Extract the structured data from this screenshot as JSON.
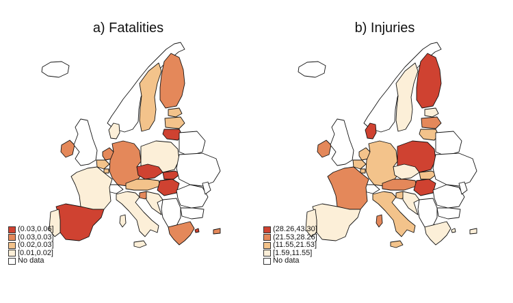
{
  "colors": {
    "c1": "#cf4231",
    "c2": "#e4885a",
    "c3": "#f3c38b",
    "c4": "#fcefd8",
    "nodata": "#ffffff",
    "border": "#111111"
  },
  "panels": [
    {
      "title": "a) Fatalities",
      "legend": [
        {
          "label": "(0.03,0.06]",
          "color_key": "c1"
        },
        {
          "label": "(0.03,0.03]",
          "color_key": "c2"
        },
        {
          "label": "(0.02,0.03]",
          "color_key": "c3"
        },
        {
          "label": "[0.01,0.02]",
          "color_key": "c4"
        },
        {
          "label": "No data",
          "color_key": "nodata"
        }
      ],
      "regions": {
        "iceland": "nodata",
        "ireland": "c2",
        "uk": "nodata",
        "norway": "nodata",
        "sweden": "c3",
        "finland": "c2",
        "estonia": "c3",
        "latvia": "c3",
        "lithuania": "c1",
        "denmark": "c4",
        "netherlands": "c2",
        "belgium": "c3",
        "luxembourg": "c3",
        "germany": "c2",
        "poland": "c4",
        "czechia": "c1",
        "slovakia": "c1",
        "austria": "c3",
        "hungary": "c1",
        "switzerland": "nodata",
        "france": "c4",
        "spain": "c1",
        "portugal": "c4",
        "italy": "c4",
        "sicily": "c4",
        "sardinia": "c4",
        "slovenia": "c2",
        "croatia": "c4",
        "romania": "nodata",
        "bulgaria": "nodata",
        "balkans": "nodata",
        "greece": "c2",
        "cyprus": "c2",
        "belarus": "nodata",
        "ukraine": "nodata",
        "moldova": "nodata",
        "islands": "c1"
      }
    },
    {
      "title": "b) Injuries",
      "legend": [
        {
          "label": "(28.26,43.30]",
          "color_key": "c1"
        },
        {
          "label": "(21.53,28.26]",
          "color_key": "c2"
        },
        {
          "label": "(11.55,21.53]",
          "color_key": "c3"
        },
        {
          "label": "[1.59,11.55]",
          "color_key": "c4"
        },
        {
          "label": "No data",
          "color_key": "nodata"
        }
      ],
      "regions": {
        "iceland": "nodata",
        "ireland": "c2",
        "uk": "nodata",
        "norway": "nodata",
        "sweden": "c4",
        "finland": "c1",
        "estonia": "c4",
        "latvia": "c2",
        "lithuania": "c3",
        "denmark": "c1",
        "netherlands": "c3",
        "belgium": "c3",
        "luxembourg": "c3",
        "germany": "c3",
        "poland": "c1",
        "czechia": "c4",
        "slovakia": "c3",
        "austria": "c2",
        "hungary": "c1",
        "switzerland": "nodata",
        "france": "c2",
        "spain": "c4",
        "portugal": "c4",
        "italy": "c3",
        "sicily": "c3",
        "sardinia": "c2",
        "slovenia": "c3",
        "croatia": "c4",
        "romania": "nodata",
        "bulgaria": "nodata",
        "balkans": "nodata",
        "greece": "c4",
        "cyprus": "c4",
        "belarus": "nodata",
        "ukraine": "nodata",
        "moldova": "nodata",
        "islands": "c4"
      }
    }
  ]
}
